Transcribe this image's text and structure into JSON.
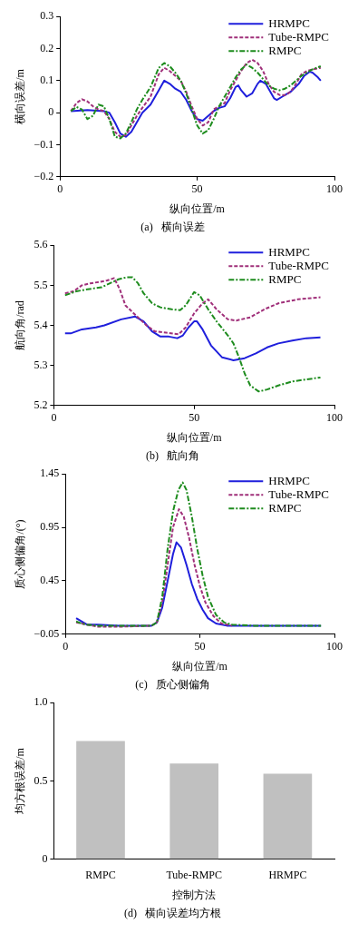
{
  "chart_data": [
    {
      "type": "line",
      "title": "(a)   横向误差",
      "xlabel": "纵向位置/m",
      "ylabel": "横向误差/m",
      "xlim": [
        0,
        100
      ],
      "xticks": [
        0,
        50,
        100
      ],
      "ylim": [
        -0.2,
        0.3
      ],
      "yticks": [
        {
          "value": -0.2,
          "label": "−0.2"
        },
        {
          "value": -0.1,
          "label": "−0.1"
        },
        0,
        0.1,
        0.2,
        0.3
      ],
      "grid": false,
      "legend": "top right",
      "marker": "none",
      "series": [
        {
          "name": "HRMPC",
          "color": "#1f1fdc",
          "line_style": "solid",
          "x": [
            4,
            10,
            16,
            18,
            20,
            22,
            24,
            26,
            28,
            30,
            33,
            36,
            38,
            40,
            42,
            44,
            46,
            48,
            50,
            52,
            54,
            56,
            58,
            60,
            62,
            64,
            65,
            66,
            68,
            70,
            72,
            73,
            75,
            77,
            78,
            79,
            81,
            84,
            87,
            89,
            91,
            92,
            94,
            95
          ],
          "values": [
            0.005,
            0.008,
            0.005,
            0,
            -0.03,
            -0.065,
            -0.075,
            -0.06,
            -0.03,
            0,
            0.025,
            0.07,
            0.1,
            0.09,
            0.075,
            0.065,
            0.04,
            0.005,
            -0.02,
            -0.025,
            -0.01,
            0.005,
            0.015,
            0.02,
            0.045,
            0.08,
            0.085,
            0.07,
            0.05,
            0.06,
            0.09,
            0.1,
            0.09,
            0.06,
            0.045,
            0.04,
            0.05,
            0.065,
            0.09,
            0.115,
            0.128,
            0.125,
            0.11,
            0.1
          ]
        },
        {
          "name": "Tube-RMPC",
          "color": "#a0307a",
          "line_style": "dashed",
          "x": [
            4,
            6,
            8,
            10,
            12,
            14,
            16,
            18,
            20,
            22,
            24,
            26,
            28,
            30,
            33,
            36,
            38,
            40,
            42,
            44,
            46,
            48,
            50,
            52,
            54,
            56,
            58,
            60,
            62,
            64,
            66,
            68,
            70,
            72,
            74,
            76,
            78,
            80,
            82,
            84,
            86,
            88,
            90,
            92,
            95
          ],
          "values": [
            0.005,
            0.03,
            0.042,
            0.035,
            0.02,
            0.01,
            0.005,
            -0.02,
            -0.06,
            -0.075,
            -0.07,
            -0.04,
            -0.01,
            0.015,
            0.05,
            0.12,
            0.14,
            0.13,
            0.115,
            0.1,
            0.065,
            0.02,
            -0.02,
            -0.04,
            -0.03,
            0.01,
            0.02,
            0.03,
            0.07,
            0.1,
            0.13,
            0.155,
            0.165,
            0.155,
            0.13,
            0.09,
            0.065,
            0.055,
            0.055,
            0.065,
            0.09,
            0.12,
            0.13,
            0.135,
            0.14
          ]
        },
        {
          "name": "RMPC",
          "color": "#1e8c1e",
          "line_style": "dashdot",
          "x": [
            4,
            6,
            8,
            10,
            12,
            14,
            16,
            18,
            20,
            22,
            24,
            26,
            28,
            30,
            33,
            36,
            38,
            40,
            42,
            44,
            46,
            48,
            50,
            52,
            54,
            56,
            58,
            60,
            62,
            64,
            66,
            68,
            70,
            72,
            74,
            76,
            78,
            80,
            82,
            84,
            86,
            88,
            90,
            92,
            95
          ],
          "values": [
            0.005,
            0.018,
            0.01,
            -0.02,
            -0.01,
            0.025,
            0.02,
            -0.02,
            -0.075,
            -0.08,
            -0.065,
            -0.03,
            0.01,
            0.04,
            0.08,
            0.14,
            0.155,
            0.145,
            0.125,
            0.1,
            0.06,
            0.01,
            -0.04,
            -0.065,
            -0.055,
            -0.02,
            0.02,
            0.05,
            0.08,
            0.11,
            0.135,
            0.15,
            0.14,
            0.125,
            0.105,
            0.085,
            0.075,
            0.07,
            0.075,
            0.085,
            0.1,
            0.115,
            0.125,
            0.135,
            0.145
          ]
        }
      ]
    },
    {
      "type": "line",
      "title": "(b)   航向角",
      "xlabel": "纵向位置/m",
      "ylabel": "航向角/rad",
      "xlim": [
        0,
        100
      ],
      "xticks": [
        0,
        50,
        100
      ],
      "ylim": [
        5.2,
        5.6
      ],
      "yticks": [
        5.2,
        5.3,
        5.4,
        5.5,
        5.6
      ],
      "grid": false,
      "legend": "top right",
      "marker": "none",
      "series": [
        {
          "name": "HRMPC",
          "color": "#1f1fdc",
          "line_style": "solid",
          "x": [
            4,
            6,
            10,
            15,
            18,
            24,
            29,
            32,
            35,
            38,
            41,
            44,
            46,
            48,
            50,
            51,
            53,
            56,
            60,
            64,
            68,
            72,
            76,
            80,
            85,
            90,
            95
          ],
          "values": [
            5.38,
            5.38,
            5.39,
            5.395,
            5.4,
            5.415,
            5.422,
            5.41,
            5.385,
            5.372,
            5.372,
            5.368,
            5.375,
            5.395,
            5.41,
            5.41,
            5.39,
            5.35,
            5.32,
            5.313,
            5.318,
            5.33,
            5.345,
            5.355,
            5.362,
            5.368,
            5.37
          ]
        },
        {
          "name": "Tube-RMPC",
          "color": "#a0307a",
          "line_style": "dashed",
          "x": [
            4,
            7,
            10,
            13,
            16,
            19,
            21.5,
            23.5,
            25.5,
            30,
            33,
            36,
            40,
            44.5,
            47,
            50,
            53,
            55,
            58,
            62,
            65,
            70,
            75,
            80,
            87,
            95
          ],
          "values": [
            5.48,
            5.485,
            5.5,
            5.505,
            5.508,
            5.512,
            5.518,
            5.49,
            5.45,
            5.42,
            5.4,
            5.385,
            5.382,
            5.378,
            5.395,
            5.43,
            5.455,
            5.465,
            5.44,
            5.415,
            5.412,
            5.42,
            5.44,
            5.455,
            5.465,
            5.47
          ]
        },
        {
          "name": "RMPC",
          "color": "#1e8c1e",
          "line_style": "dashdot",
          "x": [
            4,
            8,
            12,
            17,
            20,
            23,
            26,
            28,
            30,
            32,
            35,
            38,
            42,
            45,
            47,
            50,
            52,
            55,
            58,
            62,
            64,
            66,
            68,
            70,
            73,
            76,
            80,
            85,
            90,
            95
          ],
          "values": [
            5.475,
            5.485,
            5.49,
            5.495,
            5.505,
            5.515,
            5.52,
            5.52,
            5.505,
            5.48,
            5.455,
            5.445,
            5.44,
            5.438,
            5.45,
            5.483,
            5.475,
            5.44,
            5.41,
            5.375,
            5.355,
            5.32,
            5.28,
            5.25,
            5.235,
            5.24,
            5.25,
            5.26,
            5.265,
            5.27
          ]
        }
      ]
    },
    {
      "type": "line",
      "title": "(c)   质心侧偏角",
      "xlabel": "纵向位置/m",
      "ylabel": "质心侧偏角/(°)",
      "xlim": [
        0,
        100
      ],
      "xticks": [
        0,
        50,
        100
      ],
      "ylim": [
        -0.05,
        1.45
      ],
      "yticks": [
        {
          "value": -0.05,
          "label": "−0.05"
        },
        0.45,
        0.95,
        1.45
      ],
      "grid": false,
      "legend": "top right",
      "marker": "none",
      "series": [
        {
          "name": "HRMPC",
          "color": "#1f1fdc",
          "line_style": "solid",
          "x": [
            4,
            6,
            8,
            12,
            20,
            32,
            34,
            36,
            38,
            40,
            41.3,
            43,
            45,
            47,
            49,
            51,
            53,
            56,
            60,
            70,
            95
          ],
          "values": [
            0.1,
            0.07,
            0.04,
            0.04,
            0.03,
            0.03,
            0.06,
            0.2,
            0.45,
            0.7,
            0.81,
            0.76,
            0.6,
            0.42,
            0.28,
            0.18,
            0.1,
            0.05,
            0.03,
            0.03,
            0.03
          ]
        },
        {
          "name": "Tube-RMPC",
          "color": "#a0307a",
          "line_style": "dashed",
          "x": [
            4,
            6,
            8,
            12,
            20,
            32,
            34,
            36,
            38,
            40,
            42.2,
            44,
            46,
            48,
            50,
            52,
            55,
            58,
            62
          ],
          "values": [
            0.06,
            0.05,
            0.04,
            0.02,
            0.02,
            0.03,
            0.06,
            0.25,
            0.6,
            0.95,
            1.12,
            1.05,
            0.85,
            0.6,
            0.4,
            0.25,
            0.12,
            0.05,
            0.03
          ]
        },
        {
          "name": "RMPC",
          "color": "#1e8c1e",
          "line_style": "dashdot",
          "x": [
            4,
            6,
            8,
            12,
            20,
            32,
            34,
            36,
            38,
            40,
            42,
            43.6,
            45,
            47,
            49,
            51,
            53,
            56,
            59,
            62,
            70,
            95
          ],
          "values": [
            0.07,
            0.05,
            0.04,
            0.03,
            0.03,
            0.03,
            0.06,
            0.3,
            0.75,
            1.1,
            1.3,
            1.37,
            1.3,
            1.05,
            0.75,
            0.5,
            0.3,
            0.13,
            0.06,
            0.04,
            0.03,
            0.03
          ]
        }
      ]
    },
    {
      "type": "bar",
      "title": "(d)   横向误差均方根",
      "xlabel": "控制方法",
      "ylabel": "均方根误差/m",
      "categories": [
        "RMPC",
        "Tube-RMPC",
        "HRMPC"
      ],
      "values": [
        0.755,
        0.612,
        0.546
      ],
      "color": "#c0c0c0",
      "ylim": [
        0,
        1
      ],
      "yticks": [
        0,
        0.5,
        {
          "value": 1,
          "label": "1.0"
        }
      ],
      "grid": false
    }
  ]
}
